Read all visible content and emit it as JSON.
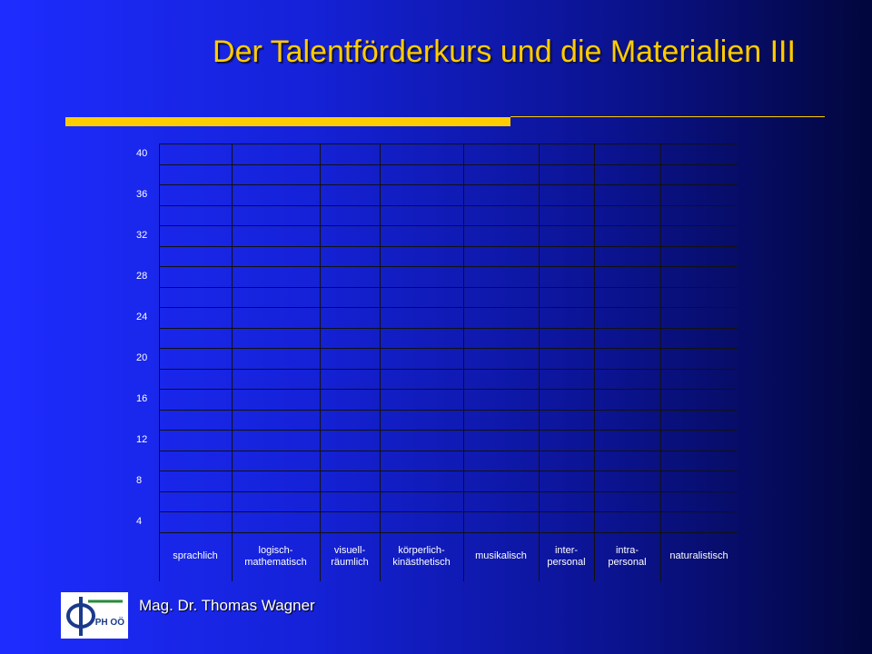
{
  "header": {
    "title": "Der Talentförderkurs und die Materialien III"
  },
  "table": {
    "row_labels": [
      "40",
      "36",
      "32",
      "28",
      "24",
      "20",
      "16",
      "12",
      "8",
      "4"
    ],
    "columns": [
      "sprachlich",
      "logisch-\nmathematisch",
      "visuell-\nräumlich",
      "körperlich-\nkinästhetisch",
      "musikalisch",
      "inter-\npersonal",
      "intra-\npersonal",
      "naturalistisch"
    ]
  },
  "footer": {
    "logo": "PH OÖ",
    "author": "Mag. Dr. Thomas Wagner"
  }
}
